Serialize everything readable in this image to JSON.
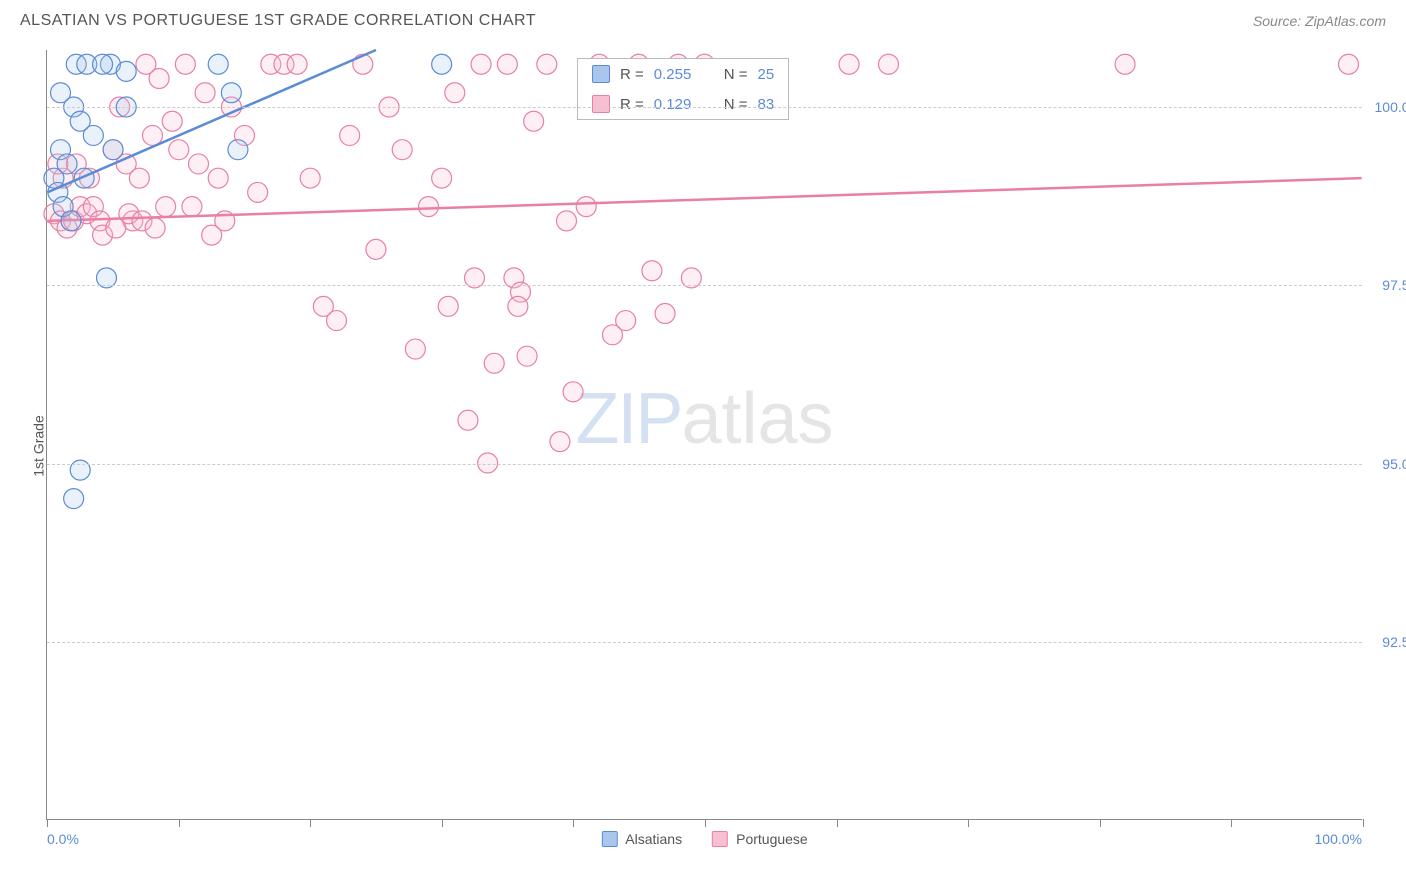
{
  "header": {
    "title": "ALSATIAN VS PORTUGUESE 1ST GRADE CORRELATION CHART",
    "source": "Source: ZipAtlas.com"
  },
  "axes": {
    "ylabel": "1st Grade",
    "ylim": [
      90.0,
      100.8
    ],
    "xlim": [
      0,
      100
    ],
    "yticks": [
      92.5,
      95.0,
      97.5,
      100.0
    ],
    "ytick_labels": [
      "92.5%",
      "95.0%",
      "97.5%",
      "100.0%"
    ],
    "xticks": [
      0,
      10,
      20,
      30,
      40,
      50,
      60,
      70,
      80,
      90,
      100
    ],
    "xlabel_min": "0.0%",
    "xlabel_max": "100.0%"
  },
  "style": {
    "background": "#ffffff",
    "grid_color": "#cccccc",
    "axis_color": "#888888",
    "tick_label_color": "#5b8bd6",
    "marker_radius": 10,
    "marker_stroke_width": 1.2,
    "marker_fill_opacity": 0.25,
    "line_width": 2.5
  },
  "series": {
    "alsatians": {
      "label": "Alsatians",
      "color_stroke": "#5b8bd6",
      "color_fill": "#a9c6ec",
      "R": "0.255",
      "N": "25",
      "trend": {
        "x1": 0,
        "y1": 98.8,
        "x2": 25,
        "y2": 100.8
      },
      "points": [
        [
          2.2,
          100.6
        ],
        [
          3.0,
          100.6
        ],
        [
          4.8,
          100.6
        ],
        [
          4.2,
          100.6
        ],
        [
          6.0,
          100.5
        ],
        [
          13.0,
          100.6
        ],
        [
          14.0,
          100.2
        ],
        [
          1.0,
          100.2
        ],
        [
          2.0,
          100.0
        ],
        [
          2.5,
          99.8
        ],
        [
          3.5,
          99.6
        ],
        [
          1.0,
          99.4
        ],
        [
          1.5,
          99.2
        ],
        [
          0.5,
          99.0
        ],
        [
          0.8,
          98.8
        ],
        [
          1.2,
          98.6
        ],
        [
          6.0,
          100.0
        ],
        [
          5.0,
          99.4
        ],
        [
          14.5,
          99.4
        ],
        [
          30.0,
          100.6
        ],
        [
          4.5,
          97.6
        ],
        [
          2.5,
          94.9
        ],
        [
          2.0,
          94.5
        ],
        [
          1.8,
          98.4
        ],
        [
          2.8,
          99.0
        ]
      ]
    },
    "portuguese": {
      "label": "Portuguese",
      "color_stroke": "#e97fa3",
      "color_fill": "#f6c0d2",
      "R": "0.129",
      "N": "83",
      "trend": {
        "x1": 0,
        "y1": 98.4,
        "x2": 100,
        "y2": 99.0
      },
      "points": [
        [
          0.5,
          98.5
        ],
        [
          1.0,
          98.4
        ],
        [
          1.5,
          98.3
        ],
        [
          2.0,
          98.4
        ],
        [
          2.5,
          98.6
        ],
        [
          3.0,
          98.5
        ],
        [
          3.5,
          98.6
        ],
        [
          4.0,
          98.4
        ],
        [
          5.0,
          99.4
        ],
        [
          5.5,
          100.0
        ],
        [
          6.0,
          99.2
        ],
        [
          6.5,
          98.4
        ],
        [
          7.0,
          99.0
        ],
        [
          7.5,
          100.6
        ],
        [
          8.0,
          99.6
        ],
        [
          8.5,
          100.4
        ],
        [
          9.0,
          98.6
        ],
        [
          9.5,
          99.8
        ],
        [
          10.0,
          99.4
        ],
        [
          10.5,
          100.6
        ],
        [
          11.0,
          98.6
        ],
        [
          11.5,
          99.2
        ],
        [
          12.0,
          100.2
        ],
        [
          12.5,
          98.2
        ],
        [
          13.0,
          99.0
        ],
        [
          13.5,
          98.4
        ],
        [
          14.0,
          100.0
        ],
        [
          15.0,
          99.6
        ],
        [
          16.0,
          98.8
        ],
        [
          17.0,
          100.6
        ],
        [
          18.0,
          100.6
        ],
        [
          19.0,
          100.6
        ],
        [
          20.0,
          99.0
        ],
        [
          21.0,
          97.2
        ],
        [
          22.0,
          97.0
        ],
        [
          23.0,
          99.6
        ],
        [
          24.0,
          100.6
        ],
        [
          25.0,
          98.0
        ],
        [
          26.0,
          100.0
        ],
        [
          27.0,
          99.4
        ],
        [
          28.0,
          96.6
        ],
        [
          29.0,
          98.6
        ],
        [
          30.0,
          99.0
        ],
        [
          30.5,
          97.2
        ],
        [
          31.0,
          100.2
        ],
        [
          32.0,
          95.6
        ],
        [
          32.5,
          97.6
        ],
        [
          33.0,
          100.6
        ],
        [
          34.0,
          96.4
        ],
        [
          35.0,
          100.6
        ],
        [
          35.5,
          97.6
        ],
        [
          36.0,
          97.4
        ],
        [
          36.5,
          96.5
        ],
        [
          37.0,
          99.8
        ],
        [
          38.0,
          100.6
        ],
        [
          39.0,
          95.3
        ],
        [
          40.0,
          96.0
        ],
        [
          41.0,
          98.6
        ],
        [
          42.0,
          100.6
        ],
        [
          43.0,
          96.8
        ],
        [
          44.0,
          97.0
        ],
        [
          45.0,
          100.6
        ],
        [
          46.0,
          97.7
        ],
        [
          47.0,
          97.1
        ],
        [
          48.0,
          100.6
        ],
        [
          49.0,
          97.6
        ],
        [
          50.0,
          100.6
        ],
        [
          61.0,
          100.6
        ],
        [
          64.0,
          100.6
        ],
        [
          82.0,
          100.6
        ],
        [
          99.0,
          100.6
        ],
        [
          4.2,
          98.2
        ],
        [
          5.2,
          98.3
        ],
        [
          6.2,
          98.5
        ],
        [
          7.2,
          98.4
        ],
        [
          8.2,
          98.3
        ],
        [
          3.2,
          99.0
        ],
        [
          2.2,
          99.2
        ],
        [
          1.2,
          99.0
        ],
        [
          0.8,
          99.2
        ],
        [
          39.5,
          98.4
        ],
        [
          35.8,
          97.2
        ],
        [
          33.5,
          95.0
        ]
      ]
    }
  },
  "legend_bottom": [
    {
      "swatch_fill": "#a9c6ec",
      "swatch_stroke": "#5b8bd6",
      "label": "Alsatians"
    },
    {
      "swatch_fill": "#f6c0d2",
      "swatch_stroke": "#e97fa3",
      "label": "Portuguese"
    }
  ],
  "watermark": {
    "part1": "ZIP",
    "part2": "atlas"
  }
}
